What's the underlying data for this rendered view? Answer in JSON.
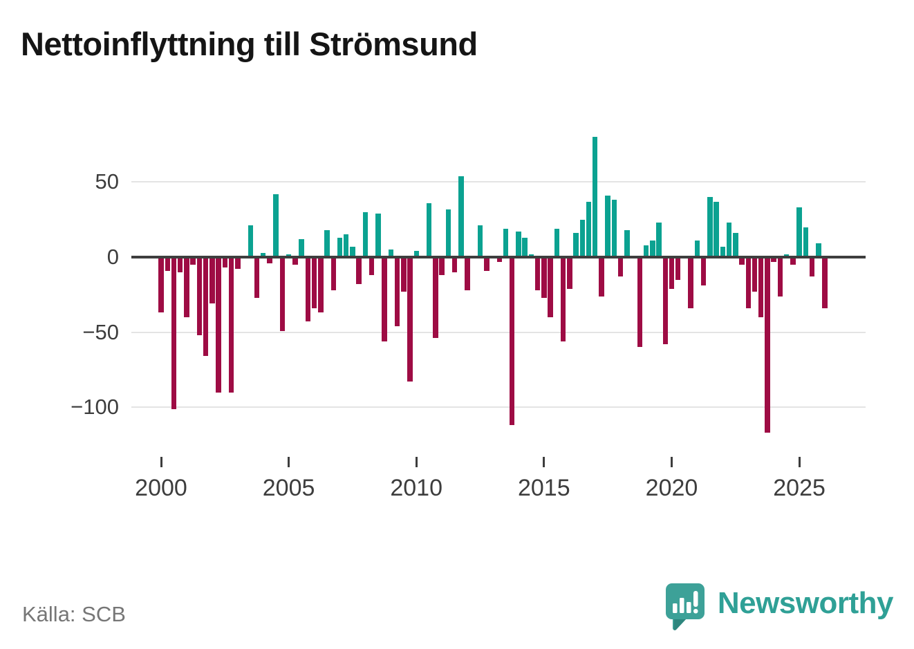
{
  "title": "Nettoinflyttning till Strömsund",
  "source": "Källa: SCB",
  "logo": {
    "text": "Newsworthy"
  },
  "colors": {
    "positive_bar": "#0ba291",
    "negative_bar": "#9e0c44",
    "grid": "#e4e4e4",
    "zero_line": "#3e3e3e",
    "axis_text": "#3d3d3d",
    "title_text": "#151515",
    "source_text": "#767676",
    "logo_teal": "#2fa096"
  },
  "chart_data": {
    "type": "bar",
    "title": "Nettoinflyttning till Strömsund",
    "frequency": "quarterly",
    "x_start": "2000 Q1",
    "x_end": "2026 Q1",
    "values": [
      -37,
      -9,
      -101,
      -10,
      -40,
      -5,
      -52,
      -66,
      -31,
      -90,
      -7,
      -90,
      -8,
      0,
      21,
      -27,
      3,
      -4,
      42,
      -49,
      2,
      -5,
      12,
      -43,
      -34,
      -37,
      18,
      -22,
      13,
      15,
      7,
      -18,
      30,
      -12,
      29,
      -56,
      5,
      -46,
      -23,
      -83,
      4,
      0,
      36,
      -54,
      -12,
      32,
      -10,
      54,
      -22,
      0,
      21,
      -9,
      0,
      -3,
      19,
      -112,
      17,
      13,
      2,
      -22,
      -27,
      -40,
      19,
      -56,
      -21,
      16,
      25,
      37,
      80,
      -26,
      41,
      38,
      -13,
      18,
      0,
      -60,
      8,
      11,
      23,
      -58,
      -21,
      -15,
      0,
      -34,
      11,
      -19,
      40,
      37,
      7,
      23,
      16,
      -5,
      -34,
      -23,
      -40,
      -117,
      -3,
      -26,
      2,
      -5,
      33,
      20,
      -13,
      9,
      -34
    ],
    "x_tick_labels": [
      "2000",
      "2005",
      "2010",
      "2015",
      "2020",
      "2025"
    ],
    "x_tick_years": [
      2000,
      2005,
      2010,
      2015,
      2020,
      2025
    ],
    "y_tick_labels": [
      "50",
      "0",
      "−50",
      "−100"
    ],
    "y_ticks": [
      50,
      0,
      -50,
      -100
    ],
    "ylim": [
      -125,
      90
    ],
    "grid": "horizontal",
    "legend": "none"
  }
}
